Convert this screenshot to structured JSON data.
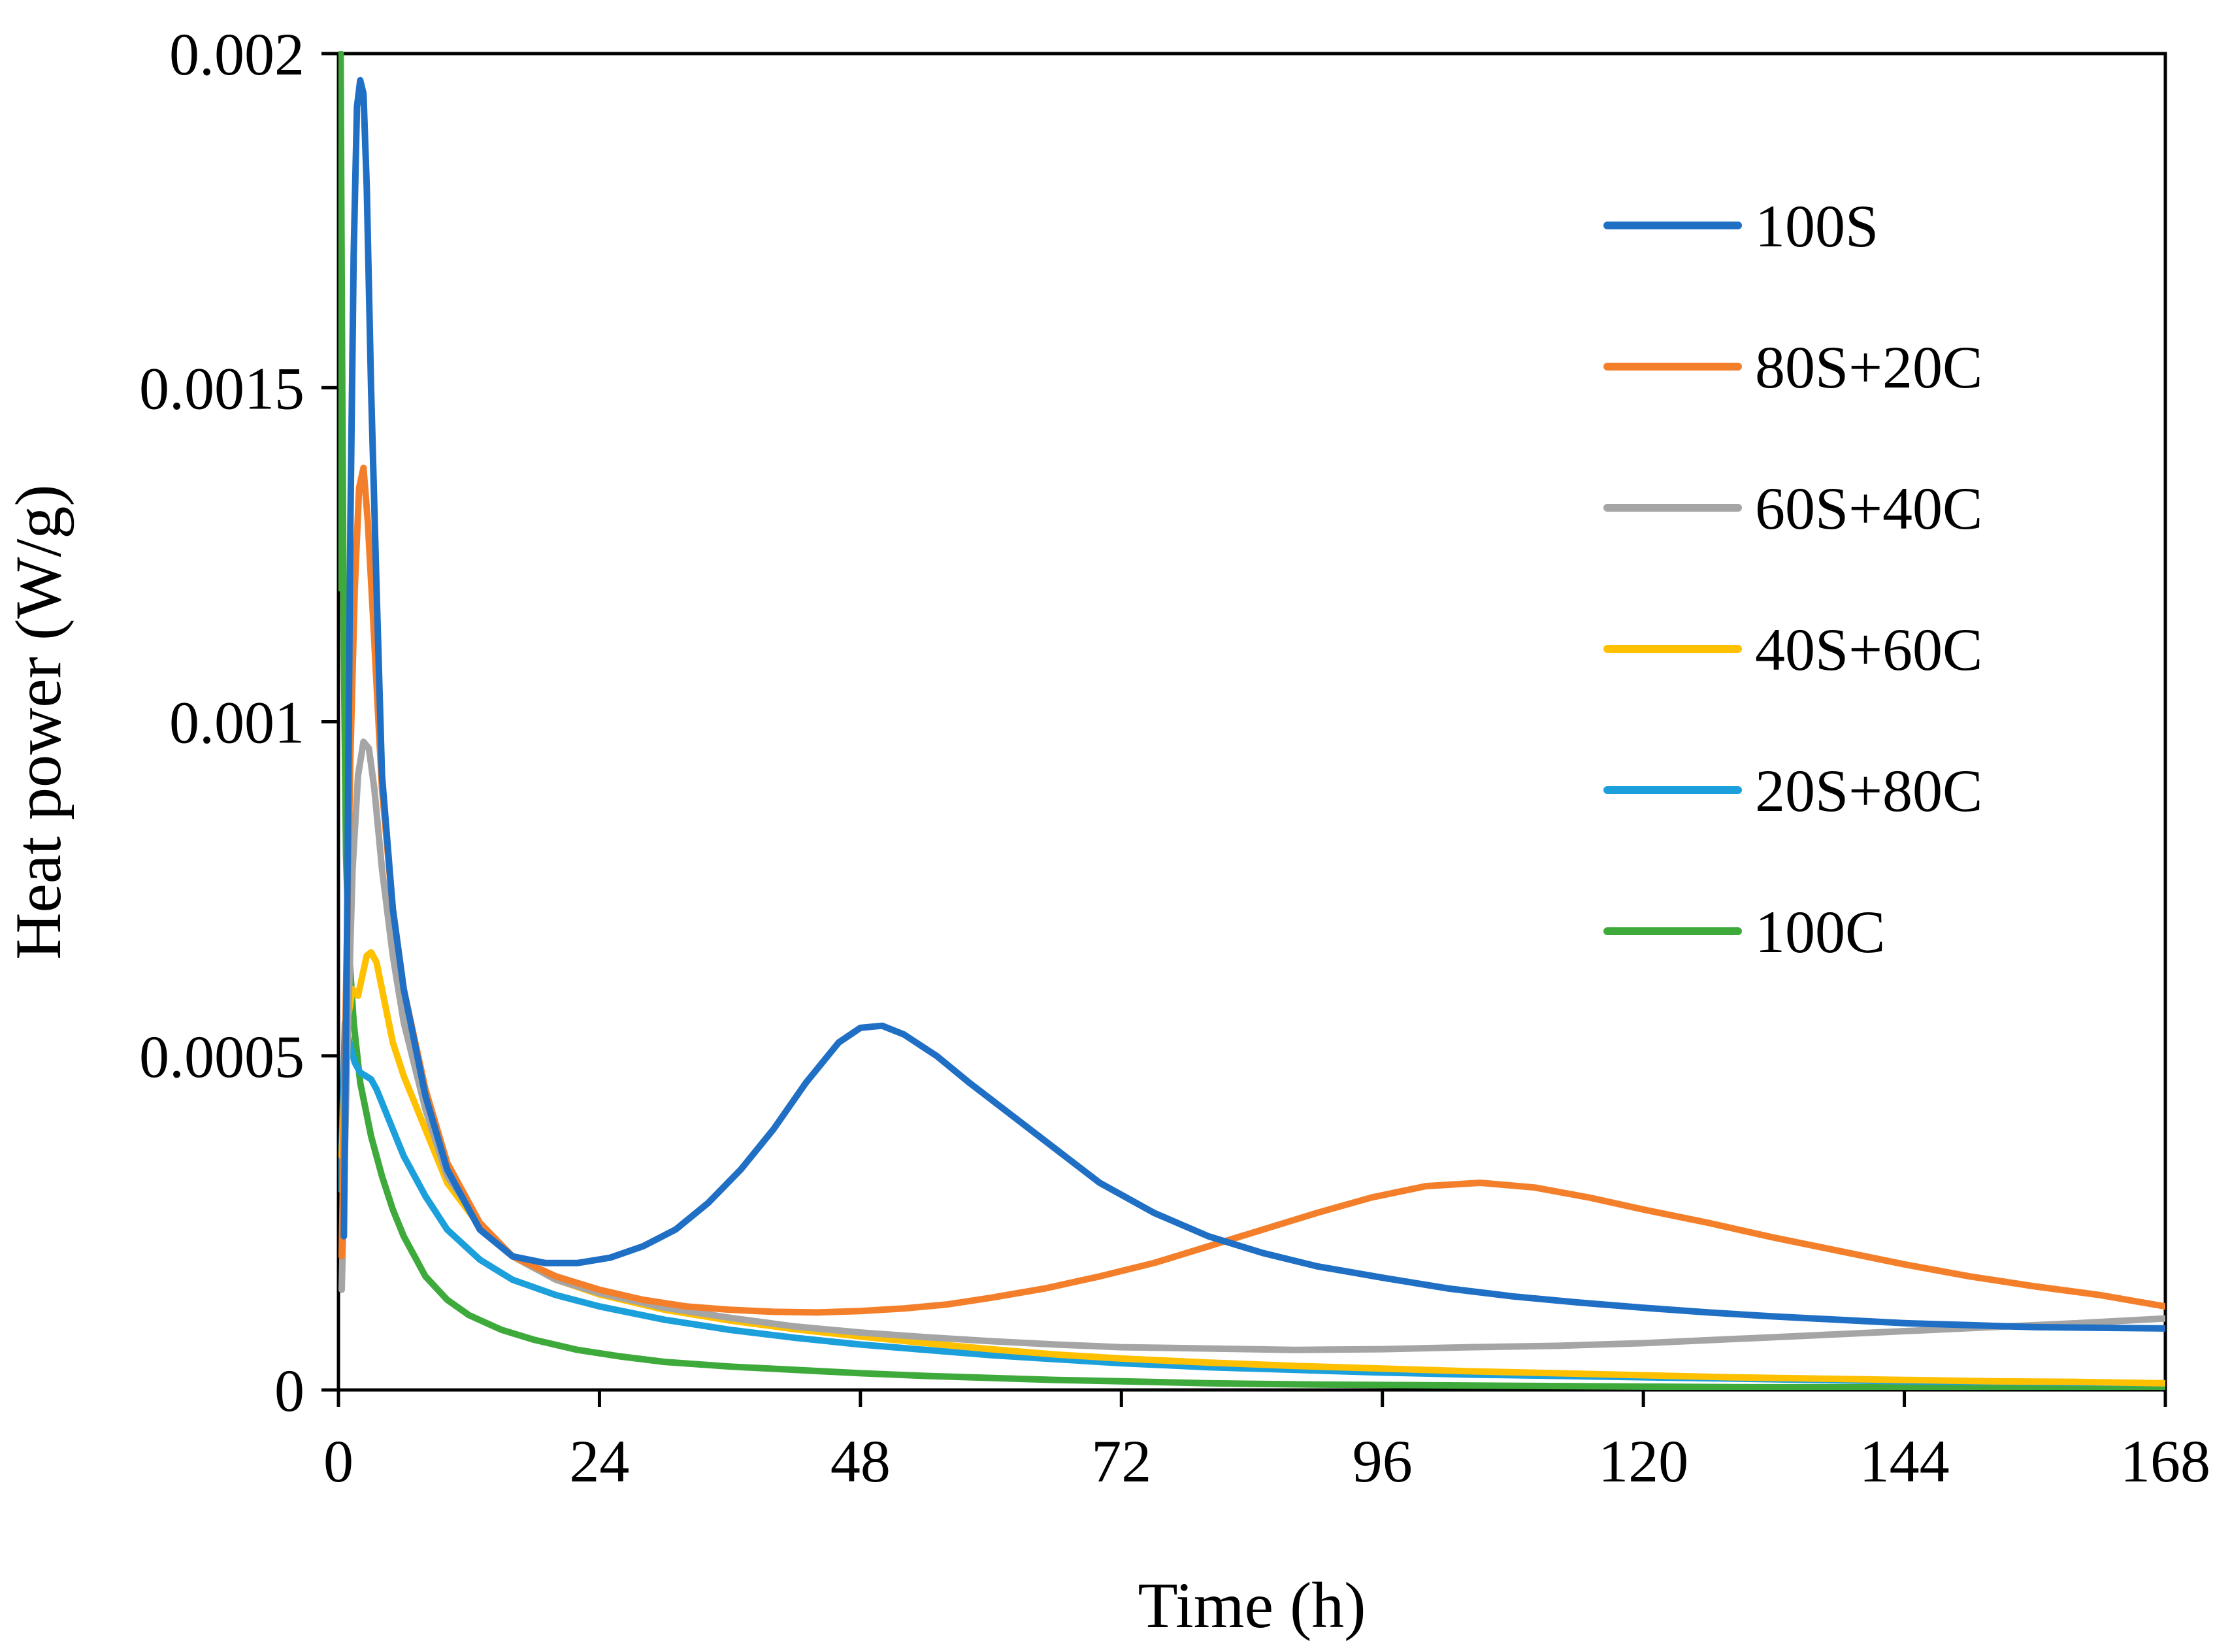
{
  "chart_data": {
    "type": "line",
    "title": "",
    "xlabel": "Time (h)",
    "ylabel": "Heat power (W/g)",
    "xlim": [
      0,
      168
    ],
    "ylim": [
      0,
      0.002
    ],
    "xticks": [
      0,
      24,
      48,
      72,
      96,
      120,
      144,
      168
    ],
    "xtick_labels": [
      "0",
      "24",
      "48",
      "72",
      "96",
      "120",
      "144",
      "168"
    ],
    "yticks": [
      0,
      0.0005,
      0.001,
      0.0015,
      0.002
    ],
    "ytick_labels": [
      "0",
      "0.0005",
      "0.001",
      "0.0015",
      "0.002"
    ],
    "grid": false,
    "legend_position": "right",
    "series": [
      {
        "name": "100S",
        "color": "#1F6FC5",
        "x": [
          0.5,
          0.8,
          1.1,
          1.4,
          1.7,
          2,
          2.3,
          2.6,
          3,
          3.5,
          4,
          5,
          6,
          8,
          10,
          13,
          16,
          19,
          22,
          25,
          28,
          31,
          34,
          37,
          40,
          43,
          46,
          48,
          50,
          52,
          55,
          58,
          62,
          66,
          70,
          75,
          80,
          85,
          90,
          96,
          102,
          108,
          114,
          120,
          126,
          132,
          138,
          144,
          150,
          156,
          162,
          168
        ],
        "y": [
          0.00023,
          0.0007,
          0.0013,
          0.0017,
          0.00192,
          0.00196,
          0.00194,
          0.0018,
          0.0015,
          0.0012,
          0.00092,
          0.00072,
          0.0006,
          0.00044,
          0.00033,
          0.00024,
          0.0002,
          0.00019,
          0.00019,
          0.000198,
          0.000215,
          0.00024,
          0.00028,
          0.00033,
          0.00039,
          0.00046,
          0.00052,
          0.000542,
          0.000545,
          0.000532,
          0.0005,
          0.00046,
          0.00041,
          0.00036,
          0.00031,
          0.000265,
          0.00023,
          0.000205,
          0.000185,
          0.000168,
          0.000152,
          0.00014,
          0.000131,
          0.000123,
          0.000116,
          0.00011,
          0.000105,
          0.0001,
          9.7e-05,
          9.4e-05,
          9.3e-05,
          9.2e-05
        ]
      },
      {
        "name": "80S+20C",
        "color": "#F47F2A",
        "x": [
          0.3,
          0.7,
          1.1,
          1.5,
          1.9,
          2.3,
          2.7,
          3.2,
          4,
          5,
          6,
          8,
          10,
          13,
          16,
          20,
          24,
          28,
          32,
          36,
          40,
          44,
          48,
          52,
          56,
          60,
          65,
          70,
          75,
          80,
          85,
          90,
          95,
          100,
          105,
          110,
          115,
          120,
          126,
          132,
          138,
          144,
          150,
          156,
          162,
          168
        ],
        "y": [
          0.0002,
          0.0006,
          0.00095,
          0.0012,
          0.00135,
          0.00138,
          0.0013,
          0.00115,
          0.0009,
          0.00072,
          0.0006,
          0.00045,
          0.00034,
          0.00025,
          0.0002,
          0.00017,
          0.00015,
          0.000135,
          0.000125,
          0.00012,
          0.000117,
          0.000116,
          0.000118,
          0.000122,
          0.000128,
          0.000138,
          0.000152,
          0.00017,
          0.00019,
          0.000215,
          0.00024,
          0.000265,
          0.000288,
          0.000305,
          0.00031,
          0.000303,
          0.000288,
          0.00027,
          0.00025,
          0.000228,
          0.000208,
          0.000188,
          0.00017,
          0.000155,
          0.000142,
          0.000125
        ]
      },
      {
        "name": "60S+40C",
        "color": "#A5A5A5",
        "x": [
          0.3,
          0.8,
          1.3,
          1.8,
          2.3,
          2.8,
          3.3,
          4,
          5,
          6,
          8,
          10,
          13,
          16,
          20,
          24,
          30,
          36,
          42,
          48,
          54,
          60,
          66,
          72,
          80,
          88,
          96,
          104,
          112,
          120,
          128,
          136,
          144,
          152,
          160,
          168
        ],
        "y": [
          0.00015,
          0.0005,
          0.00078,
          0.00092,
          0.00097,
          0.00096,
          0.0009,
          0.00078,
          0.00065,
          0.00055,
          0.00042,
          0.00032,
          0.00025,
          0.0002,
          0.000165,
          0.000145,
          0.000123,
          0.000108,
          9.5e-05,
          8.6e-05,
          7.9e-05,
          7.3e-05,
          6.8e-05,
          6.4e-05,
          6.2e-05,
          6e-05,
          6.1e-05,
          6.4e-05,
          6.6e-05,
          7e-05,
          7.6e-05,
          8.2e-05,
          8.8e-05,
          9.4e-05,
          0.0001,
          0.000107
        ]
      },
      {
        "name": "40S+60C",
        "color": "#FFC000",
        "x": [
          0.3,
          0.8,
          1.3,
          1.8,
          2.2,
          2.6,
          3,
          3.5,
          4,
          4.5,
          5,
          6,
          8,
          10,
          13,
          16,
          20,
          24,
          30,
          36,
          42,
          48,
          54,
          60,
          66,
          72,
          80,
          88,
          96,
          104,
          112,
          120,
          128,
          136,
          144,
          152,
          160,
          168
        ],
        "y": [
          0.00035,
          0.00055,
          0.0006,
          0.00059,
          0.00062,
          0.00065,
          0.000655,
          0.00064,
          0.0006,
          0.00056,
          0.00052,
          0.00047,
          0.00039,
          0.00031,
          0.000245,
          0.0002,
          0.000165,
          0.000143,
          0.00012,
          0.000104,
          9.1e-05,
          8e-05,
          7e-05,
          6.1e-05,
          5.3e-05,
          4.7e-05,
          4.1e-05,
          3.6e-05,
          3.2e-05,
          2.8e-05,
          2.5e-05,
          2.2e-05,
          1.9e-05,
          1.7e-05,
          1.5e-05,
          1.3e-05,
          1.2e-05,
          1e-05
        ]
      },
      {
        "name": "20S+80C",
        "color": "#1CA0DC",
        "x": [
          0.2,
          0.6,
          1,
          1.5,
          2,
          2.5,
          3,
          3.5,
          4,
          5,
          6,
          8,
          10,
          13,
          16,
          20,
          24,
          30,
          36,
          42,
          48,
          54,
          60,
          66,
          72,
          80,
          88,
          96,
          104,
          112,
          120,
          128,
          136,
          144,
          152,
          160,
          168
        ],
        "y": [
          0.0003,
          0.00055,
          0.00052,
          0.00049,
          0.000475,
          0.00047,
          0.000465,
          0.00045,
          0.00043,
          0.00039,
          0.00035,
          0.00029,
          0.00024,
          0.000195,
          0.000165,
          0.000142,
          0.000125,
          0.000105,
          9e-05,
          7.8e-05,
          6.8e-05,
          6e-05,
          5.2e-05,
          4.6e-05,
          4e-05,
          3.4e-05,
          3e-05,
          2.6e-05,
          2.3e-05,
          2.1e-05,
          1.9e-05,
          1.7e-05,
          1.5e-05,
          1.3e-05,
          1.2e-05,
          1.1e-05,
          1e-05
        ]
      },
      {
        "name": "100C",
        "color": "#3FAA3C",
        "x": [
          0.1,
          0.2,
          0.35,
          0.5,
          0.7,
          1,
          1.4,
          2,
          3,
          4,
          5,
          6,
          8,
          10,
          12,
          15,
          18,
          22,
          26,
          30,
          36,
          42,
          48,
          54,
          60,
          66,
          72,
          80,
          90,
          100,
          110,
          120,
          130,
          140,
          150,
          160,
          168
        ],
        "y": [
          0.0012,
          0.002,
          0.0015,
          0.0011,
          0.0008,
          0.00065,
          0.00055,
          0.00046,
          0.00038,
          0.00032,
          0.00027,
          0.00023,
          0.00017,
          0.000135,
          0.000112,
          9e-05,
          7.5e-05,
          6e-05,
          5e-05,
          4.2e-05,
          3.5e-05,
          3e-05,
          2.5e-05,
          2.1e-05,
          1.8e-05,
          1.5e-05,
          1.3e-05,
          1e-05,
          8e-06,
          7e-06,
          6e-06,
          5e-06,
          4e-06,
          4e-06,
          3e-06,
          3e-06,
          3e-06
        ]
      }
    ]
  }
}
